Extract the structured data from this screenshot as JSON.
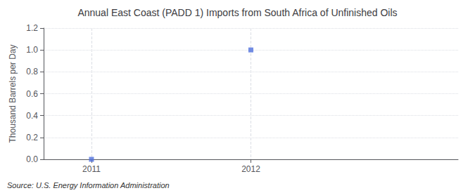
{
  "chart_data": {
    "type": "scatter",
    "title": "Annual East Coast (PADD 1) Imports from South Africa of Unfinished Oils",
    "ylabel": "Thousand Barrels per Day",
    "source": "Source: U.S. Energy Information Administration",
    "x": [
      2011,
      2012
    ],
    "values": [
      0.0,
      1.0
    ],
    "xlim": [
      2010.7,
      2013.3
    ],
    "xticks": [
      2011,
      2012
    ],
    "ylim": [
      0.0,
      1.2
    ],
    "yticks": [
      {
        "value": 0,
        "label": "0.0"
      },
      0.2,
      0.4,
      0.6,
      0.8,
      {
        "value": 1,
        "label": "1.0"
      },
      1.2
    ],
    "grid": true,
    "marker": "square"
  }
}
